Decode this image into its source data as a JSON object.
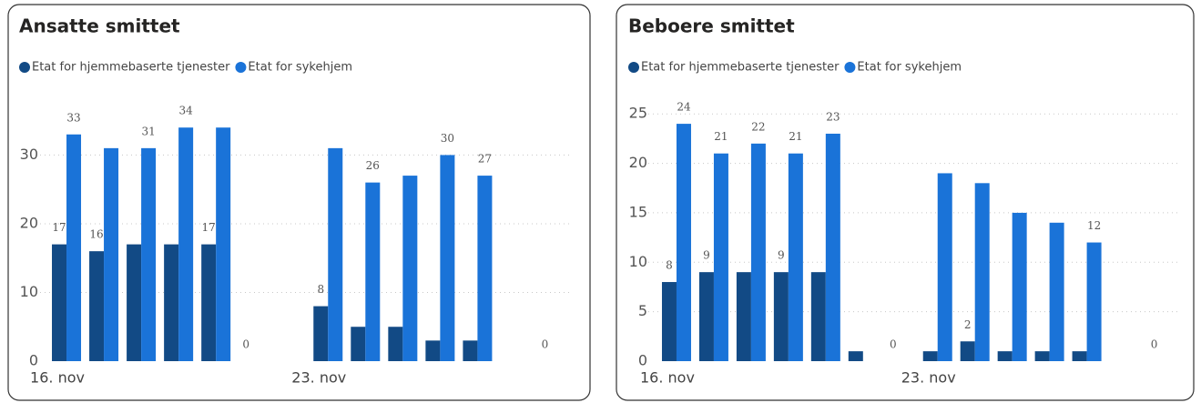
{
  "chart_data": [
    {
      "type": "bar",
      "title": "Ansatte smittet",
      "categories": [
        "16. nov",
        null,
        null,
        null,
        null,
        null,
        null,
        "23. nov",
        null,
        null,
        null,
        null,
        null,
        null
      ],
      "series": [
        {
          "name": "Etat for hjemmebaserte tjenester",
          "color": "#124a85",
          "values": [
            17,
            16,
            17,
            17,
            17,
            0,
            null,
            8,
            5,
            5,
            3,
            3,
            null,
            0
          ],
          "value_labels": [
            "17",
            "16",
            null,
            null,
            "17",
            "0",
            null,
            "8",
            null,
            null,
            null,
            null,
            null,
            "0"
          ]
        },
        {
          "name": "Etat for sykehjem",
          "color": "#1a73d8",
          "values": [
            33,
            31,
            31,
            34,
            34,
            null,
            null,
            31,
            26,
            27,
            30,
            27,
            null,
            null
          ],
          "value_labels": [
            "33",
            null,
            "31",
            "34",
            null,
            null,
            null,
            null,
            "26",
            null,
            "30",
            "27",
            null,
            null
          ]
        }
      ],
      "ylim": [
        0,
        38
      ],
      "yticks": [
        0,
        10,
        20,
        30
      ],
      "grid": true
    },
    {
      "type": "bar",
      "title": "Beboere smittet",
      "categories": [
        "16. nov",
        null,
        null,
        null,
        null,
        null,
        null,
        "23. nov",
        null,
        null,
        null,
        null,
        null,
        null
      ],
      "series": [
        {
          "name": "Etat for hjemmebaserte tjenester",
          "color": "#124a85",
          "values": [
            8,
            9,
            9,
            9,
            9,
            1,
            0,
            1,
            2,
            1,
            1,
            1,
            null,
            0
          ],
          "value_labels": [
            "8",
            "9",
            null,
            "9",
            null,
            null,
            "0",
            null,
            "2",
            null,
            null,
            null,
            null,
            "0"
          ]
        },
        {
          "name": "Etat for sykehjem",
          "color": "#1a73d8",
          "values": [
            24,
            21,
            22,
            21,
            23,
            null,
            null,
            19,
            18,
            15,
            14,
            12,
            null,
            null
          ],
          "value_labels": [
            "24",
            "21",
            "22",
            "21",
            "23",
            null,
            null,
            null,
            null,
            null,
            null,
            "12",
            null,
            null
          ]
        }
      ],
      "ylim": [
        0,
        26.4
      ],
      "yticks": [
        0,
        5,
        10,
        15,
        20,
        25
      ],
      "grid": true
    }
  ]
}
